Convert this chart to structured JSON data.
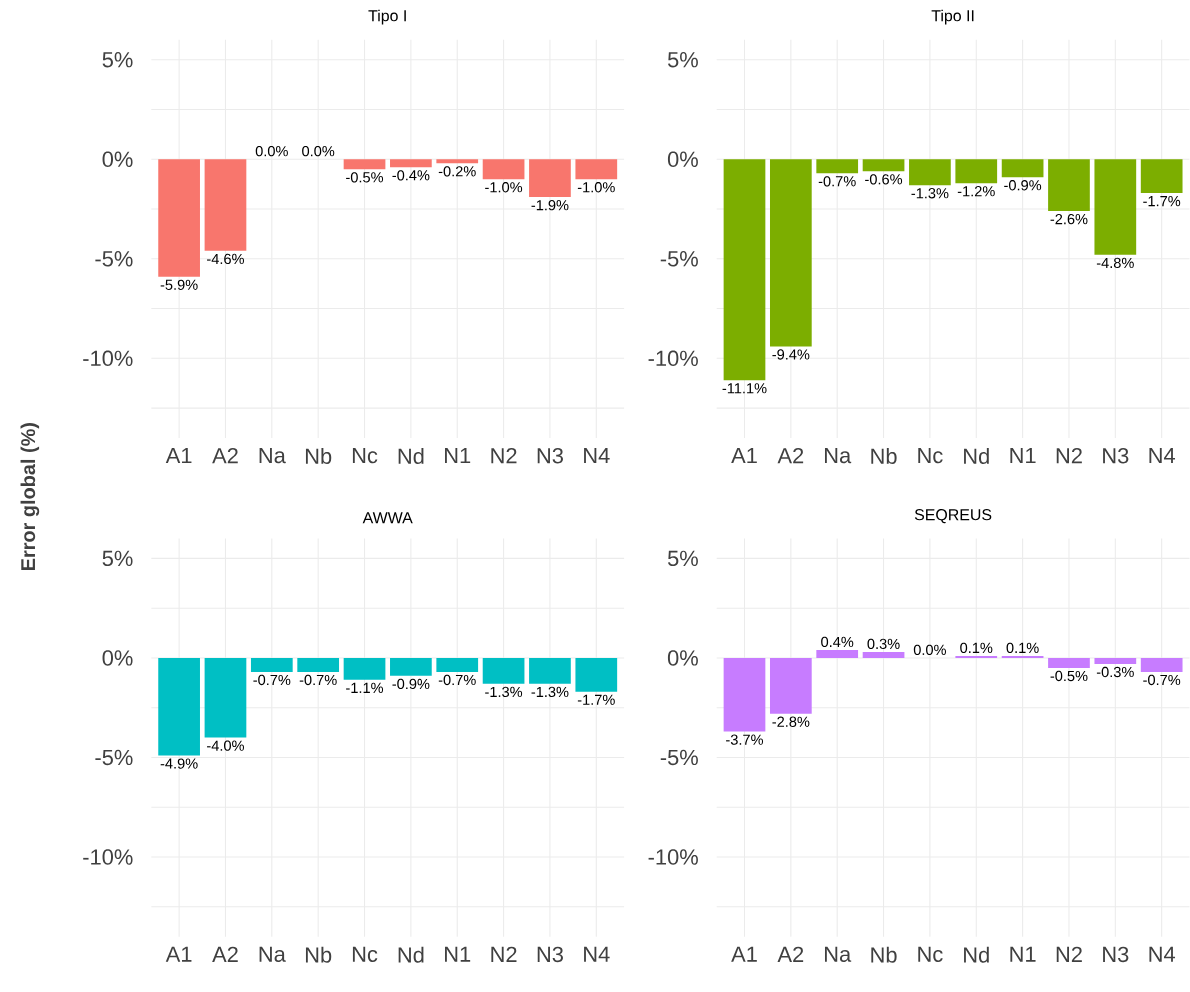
{
  "chart_data": [
    {
      "type": "bar",
      "title": "Tipo I",
      "ylabel": "Error global (%)",
      "categories": [
        "A1",
        "A2",
        "Na",
        "Nb",
        "Nc",
        "Nd",
        "N1",
        "N2",
        "N3",
        "N4"
      ],
      "values": [
        -5.9,
        -4.6,
        0.0,
        0.0,
        -0.5,
        -0.4,
        -0.2,
        -1.0,
        -1.9,
        -1.0
      ],
      "color": "#f8766d",
      "value_labels": [
        "-5.9%",
        "-4.6%",
        "0.0%",
        "0.0%",
        "-0.5%",
        "-0.4%",
        "-0.2%",
        "-1.0%",
        "-1.9%",
        "-1.0%"
      ],
      "ylim": [
        -14,
        6
      ],
      "yticks": [
        {
          "value": -12.5,
          "label": null
        },
        {
          "value": -10,
          "label": "-10%"
        },
        {
          "value": -7.5,
          "label": null
        },
        {
          "value": -5,
          "label": "-5%"
        },
        {
          "value": -2.5,
          "label": null
        },
        {
          "value": 0,
          "label": "0%"
        },
        {
          "value": 2.5,
          "label": null
        },
        {
          "value": 5,
          "label": "5%"
        }
      ],
      "grid": true
    },
    {
      "type": "bar",
      "title": "Tipo II",
      "categories": [
        "A1",
        "A2",
        "Na",
        "Nb",
        "Nc",
        "Nd",
        "N1",
        "N2",
        "N3",
        "N4"
      ],
      "values": [
        -11.1,
        -9.4,
        -0.7,
        -0.6,
        -1.3,
        -1.2,
        -0.9,
        -2.6,
        -4.8,
        -1.7
      ],
      "color": "#7cae00",
      "value_labels": [
        "-11.1%",
        "-9.4%",
        "-0.7%",
        "-0.6%",
        "-1.3%",
        "-1.2%",
        "-0.9%",
        "-2.6%",
        "-4.8%",
        "-1.7%"
      ],
      "ylim": [
        -14,
        6
      ],
      "yticks": [
        {
          "value": -12.5,
          "label": null
        },
        {
          "value": -10,
          "label": "-10%"
        },
        {
          "value": -7.5,
          "label": null
        },
        {
          "value": -5,
          "label": "-5%"
        },
        {
          "value": -2.5,
          "label": null
        },
        {
          "value": 0,
          "label": "0%"
        },
        {
          "value": 2.5,
          "label": null
        },
        {
          "value": 5,
          "label": "5%"
        }
      ],
      "grid": true
    },
    {
      "type": "bar",
      "title": "AWWA",
      "categories": [
        "A1",
        "A2",
        "Na",
        "Nb",
        "Nc",
        "Nd",
        "N1",
        "N2",
        "N3",
        "N4"
      ],
      "values": [
        -4.9,
        -4.0,
        -0.7,
        -0.7,
        -1.1,
        -0.9,
        -0.7,
        -1.3,
        -1.3,
        -1.7
      ],
      "color": "#00bfc4",
      "value_labels": [
        "-4.9%",
        "-4.0%",
        "-0.7%",
        "-0.7%",
        "-1.1%",
        "-0.9%",
        "-0.7%",
        "-1.3%",
        "-1.3%",
        "-1.7%"
      ],
      "ylim": [
        -14,
        6
      ],
      "yticks": [
        {
          "value": -12.5,
          "label": null
        },
        {
          "value": -10,
          "label": "-10%"
        },
        {
          "value": -7.5,
          "label": null
        },
        {
          "value": -5,
          "label": "-5%"
        },
        {
          "value": -2.5,
          "label": null
        },
        {
          "value": 0,
          "label": "0%"
        },
        {
          "value": 2.5,
          "label": null
        },
        {
          "value": 5,
          "label": "5%"
        }
      ],
      "grid": true
    },
    {
      "type": "bar",
      "title": "SEQREUS",
      "categories": [
        "A1",
        "A2",
        "Na",
        "Nb",
        "Nc",
        "Nd",
        "N1",
        "N2",
        "N3",
        "N4"
      ],
      "values": [
        -3.7,
        -2.8,
        0.4,
        0.3,
        0.0,
        0.1,
        0.1,
        -0.5,
        -0.3,
        -0.7
      ],
      "color": "#c77cff",
      "value_labels": [
        "-3.7%",
        "-2.8%",
        "0.4%",
        "0.3%",
        "0.0%",
        "0.1%",
        "0.1%",
        "-0.5%",
        "-0.3%",
        "-0.7%"
      ],
      "ylim": [
        -14,
        6
      ],
      "yticks": [
        {
          "value": -12.5,
          "label": null
        },
        {
          "value": -10,
          "label": "-10%"
        },
        {
          "value": -7.5,
          "label": null
        },
        {
          "value": -5,
          "label": "-5%"
        },
        {
          "value": -2.5,
          "label": null
        },
        {
          "value": 0,
          "label": "0%"
        },
        {
          "value": 2.5,
          "label": null
        },
        {
          "value": 5,
          "label": "5%"
        }
      ],
      "grid": true
    }
  ]
}
